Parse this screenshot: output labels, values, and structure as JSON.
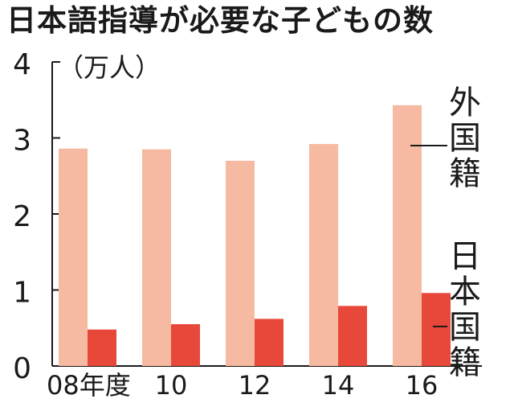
{
  "chart_data": {
    "type": "bar",
    "title": "日本語指導が必要な子どもの数",
    "unit_label": "（万人）",
    "categories": [
      "08年度",
      "10",
      "12",
      "14",
      "16"
    ],
    "series": [
      {
        "name": "外国籍",
        "values": [
          2.86,
          2.85,
          2.7,
          2.92,
          3.43
        ],
        "color": "#f6b9a2"
      },
      {
        "name": "日本国籍",
        "values": [
          0.48,
          0.55,
          0.62,
          0.79,
          0.96
        ],
        "color": "#e8483a"
      }
    ],
    "yticks": [
      "0",
      "1",
      "2",
      "3",
      "4"
    ],
    "ylim": [
      0,
      4
    ],
    "grid": false,
    "legend": "right, labels with leader lines"
  }
}
